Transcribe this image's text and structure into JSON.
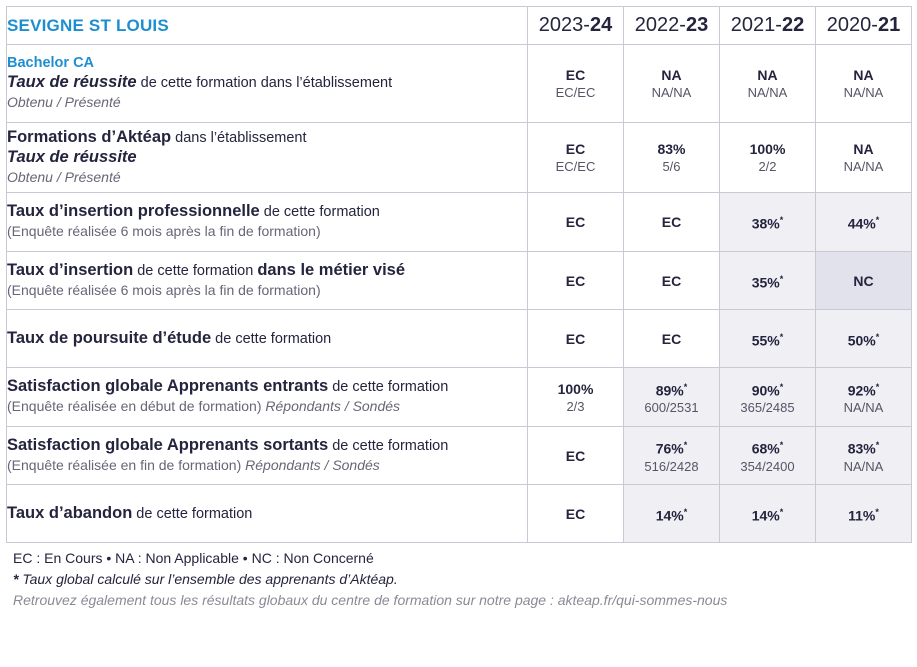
{
  "header": {
    "school": "SEVIGNE ST LOUIS",
    "years": [
      {
        "start": "2023-",
        "end": "24"
      },
      {
        "start": "2022-",
        "end": "23"
      },
      {
        "start": "2021-",
        "end": "22"
      },
      {
        "start": "2020-",
        "end": "21"
      }
    ]
  },
  "rows": {
    "r1": {
      "program": "Bachelor CA",
      "title_it": "Taux de réussite",
      "title_rest": " de cette formation dans l’établissement",
      "sub": "Obtenu / Présenté",
      "cells": [
        {
          "v": "EC",
          "n": "EC/EC"
        },
        {
          "v": "NA",
          "n": "NA/NA"
        },
        {
          "v": "NA",
          "n": "NA/NA"
        },
        {
          "v": "NA",
          "n": "NA/NA"
        }
      ]
    },
    "r2": {
      "title_bold": "Formations d’Aktéap",
      "title_rest": " dans l’établissement",
      "title_it": "Taux de réussite",
      "sub": "Obtenu / Présenté",
      "cells": [
        {
          "v": "EC",
          "n": "EC/EC"
        },
        {
          "v": "83%",
          "n": "5/6"
        },
        {
          "v": "100%",
          "n": "2/2"
        },
        {
          "v": "NA",
          "n": "NA/NA"
        }
      ]
    },
    "r3": {
      "title_bold": "Taux d’insertion professionnelle",
      "title_rest": " de cette formation",
      "sub": "(Enquête réalisée 6 mois après la fin de formation)",
      "cells": [
        {
          "v": "EC"
        },
        {
          "v": "EC"
        },
        {
          "v": "38%",
          "star": "*"
        },
        {
          "v": "44%",
          "star": "*"
        }
      ]
    },
    "r4": {
      "title_bold": "Taux d’insertion",
      "title_rest": " de cette formation ",
      "title_bold2": "dans le métier visé",
      "sub": "(Enquête réalisée 6 mois après la fin de formation)",
      "cells": [
        {
          "v": "EC"
        },
        {
          "v": "EC"
        },
        {
          "v": "35%",
          "star": "*"
        },
        {
          "v": "NC"
        }
      ]
    },
    "r5": {
      "title_bold": "Taux de poursuite d’étude",
      "title_rest": " de cette formation",
      "cells": [
        {
          "v": "EC"
        },
        {
          "v": "EC"
        },
        {
          "v": "55%",
          "star": "*"
        },
        {
          "v": "50%",
          "star": "*"
        }
      ]
    },
    "r6": {
      "title_bold": "Satisfaction globale Apprenants entrants",
      "title_rest": " de cette formation",
      "sub": "(Enquête réalisée en début de formation) ",
      "sub_it": "Répondants / Sondés",
      "cells": [
        {
          "v": "100%",
          "n": "2/3"
        },
        {
          "v": "89%",
          "star": "*",
          "n": "600/2531"
        },
        {
          "v": "90%",
          "star": "*",
          "n": "365/2485"
        },
        {
          "v": "92%",
          "star": "*",
          "n": "NA/NA"
        }
      ]
    },
    "r7": {
      "title_bold": "Satisfaction globale Apprenants sortants",
      "title_rest": " de cette formation",
      "sub": "(Enquête réalisée en fin de formation) ",
      "sub_it": "Répondants / Sondés",
      "cells": [
        {
          "v": "EC"
        },
        {
          "v": "76%",
          "star": "*",
          "n": "516/2428"
        },
        {
          "v": "68%",
          "star": "*",
          "n": "354/2400"
        },
        {
          "v": "83%",
          "star": "*",
          "n": "NA/NA"
        }
      ]
    },
    "r8": {
      "title_bold": "Taux d’abandon",
      "title_rest": " de cette formation",
      "cells": [
        {
          "v": "EC"
        },
        {
          "v": "14%",
          "star": "*"
        },
        {
          "v": "14%",
          "star": "*"
        },
        {
          "v": "11%",
          "star": "*"
        }
      ]
    }
  },
  "legend": {
    "line1": "EC : En Cours  •  NA : Non Applicable  •  NC : Non Concerné",
    "line2_star": "*",
    "line2": " Taux global calculé sur l’ensemble des apprenants d’Aktéap.",
    "line3": "Retrouvez également tous les résultats globaux du centre de formation sur notre page : akteap.fr/qui-sommes-nous"
  },
  "colors": {
    "accent": "#1d8fd0",
    "shade": "#efeff4",
    "shade_dark": "#e2e2ec",
    "text": "#24243e"
  }
}
